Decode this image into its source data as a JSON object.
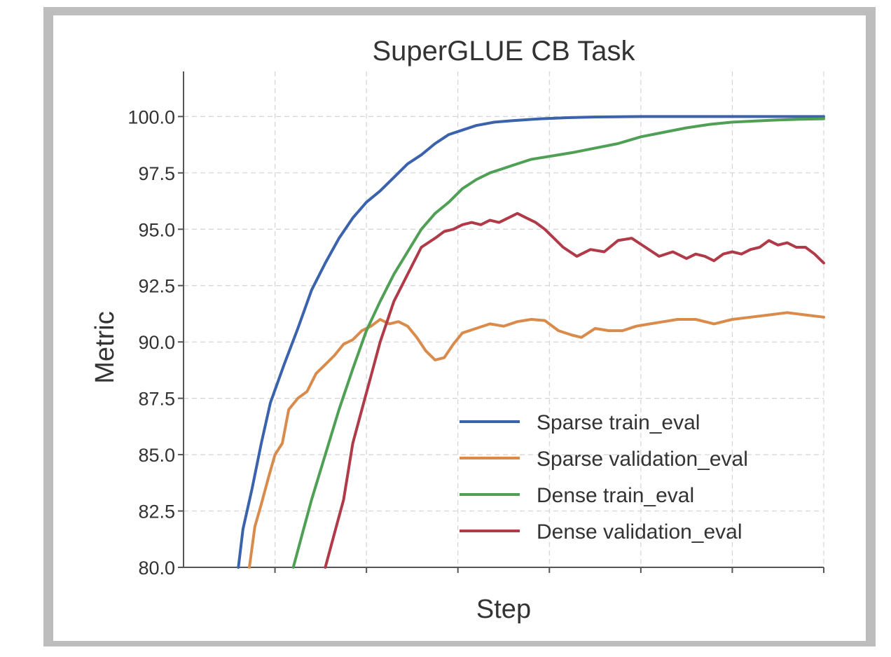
{
  "chart_data": {
    "type": "line",
    "title": "SuperGLUE CB Task",
    "xlabel": "Step",
    "ylabel": "Metric",
    "xlim": [
      0,
      7
    ],
    "ylim": [
      80.0,
      102.0
    ],
    "yticks": [
      80.0,
      82.5,
      85.0,
      87.5,
      90.0,
      92.5,
      95.0,
      97.5,
      100.0
    ],
    "ytick_labels": [
      "80.0",
      "82.5",
      "85.0",
      "87.5",
      "90.0",
      "92.5",
      "95.0",
      "97.5",
      "100.0"
    ],
    "xticks": [
      1,
      2,
      3,
      4,
      5,
      6,
      7
    ],
    "grid": true,
    "legend_position": "lower-right",
    "series": [
      {
        "name": "Sparse train_eval",
        "color": "#3a62ad",
        "x": [
          0.6,
          0.65,
          0.75,
          0.85,
          0.95,
          1.1,
          1.25,
          1.4,
          1.55,
          1.7,
          1.85,
          2.0,
          2.15,
          2.3,
          2.45,
          2.6,
          2.75,
          2.9,
          3.05,
          3.2,
          3.4,
          3.6,
          3.9,
          4.2,
          4.5,
          5.0,
          5.5,
          6.0,
          6.5,
          7.0
        ],
        "y": [
          80.0,
          81.7,
          83.5,
          85.5,
          87.3,
          89.0,
          90.6,
          92.3,
          93.5,
          94.6,
          95.5,
          96.2,
          96.7,
          97.3,
          97.9,
          98.3,
          98.8,
          99.2,
          99.4,
          99.6,
          99.75,
          99.82,
          99.9,
          99.95,
          99.98,
          100.0,
          100.0,
          100.0,
          100.0,
          100.0
        ]
      },
      {
        "name": "Sparse validation_eval",
        "color": "#d98b4c",
        "x": [
          0.72,
          0.78,
          0.85,
          0.93,
          1.0,
          1.08,
          1.15,
          1.25,
          1.35,
          1.45,
          1.55,
          1.65,
          1.75,
          1.85,
          1.95,
          2.05,
          2.15,
          2.25,
          2.35,
          2.45,
          2.55,
          2.65,
          2.75,
          2.85,
          2.95,
          3.05,
          3.2,
          3.35,
          3.5,
          3.65,
          3.8,
          3.95,
          4.1,
          4.25,
          4.35,
          4.5,
          4.65,
          4.8,
          4.95,
          5.1,
          5.25,
          5.4,
          5.6,
          5.8,
          6.0,
          6.2,
          6.4,
          6.6,
          6.8,
          7.0
        ],
        "y": [
          80.0,
          81.8,
          82.8,
          84.0,
          85.0,
          85.5,
          87.0,
          87.5,
          87.8,
          88.6,
          89.0,
          89.4,
          89.9,
          90.1,
          90.5,
          90.7,
          91.0,
          90.8,
          90.9,
          90.7,
          90.2,
          89.6,
          89.2,
          89.3,
          89.9,
          90.4,
          90.6,
          90.8,
          90.7,
          90.9,
          91.0,
          90.95,
          90.5,
          90.3,
          90.2,
          90.6,
          90.5,
          90.5,
          90.7,
          90.8,
          90.9,
          91.0,
          91.0,
          90.8,
          91.0,
          91.1,
          91.2,
          91.3,
          91.2,
          91.1
        ]
      },
      {
        "name": "Dense train_eval",
        "color": "#4fa055",
        "x": [
          1.2,
          1.3,
          1.4,
          1.55,
          1.7,
          1.85,
          2.0,
          2.15,
          2.3,
          2.45,
          2.6,
          2.75,
          2.9,
          3.05,
          3.2,
          3.35,
          3.5,
          3.65,
          3.8,
          3.95,
          4.1,
          4.25,
          4.5,
          4.75,
          5.0,
          5.25,
          5.5,
          5.75,
          6.0,
          6.25,
          6.5,
          6.75,
          7.0
        ],
        "y": [
          80.0,
          81.5,
          83.0,
          85.0,
          87.0,
          88.8,
          90.5,
          91.8,
          93.0,
          94.0,
          95.0,
          95.7,
          96.2,
          96.8,
          97.2,
          97.5,
          97.7,
          97.9,
          98.1,
          98.2,
          98.3,
          98.4,
          98.6,
          98.8,
          99.1,
          99.3,
          99.5,
          99.65,
          99.75,
          99.8,
          99.85,
          99.88,
          99.9
        ]
      },
      {
        "name": "Dense validation_eval",
        "color": "#b03a48",
        "x": [
          1.55,
          1.65,
          1.75,
          1.85,
          1.95,
          2.05,
          2.15,
          2.3,
          2.45,
          2.6,
          2.75,
          2.85,
          2.95,
          3.05,
          3.15,
          3.25,
          3.35,
          3.45,
          3.55,
          3.65,
          3.75,
          3.85,
          3.95,
          4.05,
          4.15,
          4.3,
          4.45,
          4.6,
          4.75,
          4.9,
          5.05,
          5.2,
          5.35,
          5.5,
          5.6,
          5.7,
          5.8,
          5.9,
          6.0,
          6.1,
          6.2,
          6.3,
          6.4,
          6.5,
          6.6,
          6.7,
          6.8,
          6.9,
          7.0
        ],
        "y": [
          80.0,
          81.5,
          83.0,
          85.5,
          87.0,
          88.5,
          90.0,
          91.8,
          93.0,
          94.2,
          94.6,
          94.9,
          95.0,
          95.2,
          95.3,
          95.2,
          95.4,
          95.3,
          95.5,
          95.7,
          95.5,
          95.3,
          95.0,
          94.6,
          94.2,
          93.8,
          94.1,
          94.0,
          94.5,
          94.6,
          94.2,
          93.8,
          94.0,
          93.7,
          93.9,
          93.8,
          93.6,
          93.9,
          94.0,
          93.9,
          94.1,
          94.2,
          94.5,
          94.3,
          94.4,
          94.2,
          94.2,
          93.9,
          93.5
        ]
      }
    ]
  }
}
